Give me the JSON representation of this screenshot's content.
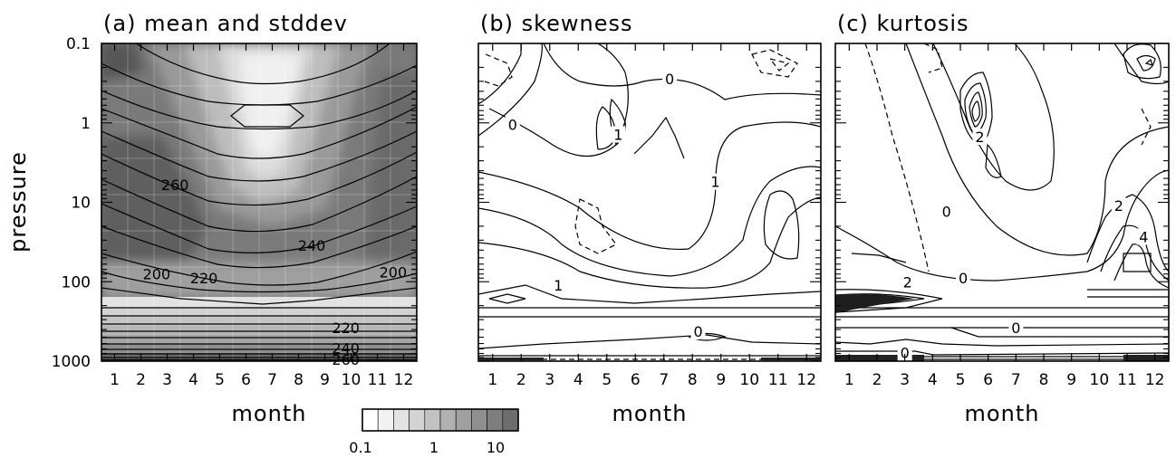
{
  "chart_data": {
    "type": "contour",
    "shared_axes": {
      "xlabel": "month",
      "ylabel": "pressure",
      "x_ticks": [
        "1",
        "2",
        "3",
        "4",
        "5",
        "6",
        "7",
        "8",
        "9",
        "10",
        "11",
        "12"
      ],
      "y_scale": "log",
      "y_reversed": true,
      "y_ticks": [
        "0.1",
        "1",
        "10",
        "100",
        "1000"
      ],
      "xlim": [
        0.5,
        12.5
      ],
      "ylim": [
        1000,
        0.1
      ]
    },
    "panels": [
      {
        "panel": "a",
        "title": "(a)  mean and stddev",
        "shading": "stddev",
        "contour_labels": [
          {
            "text": "260",
            "x": 3.3,
            "p": 6
          },
          {
            "text": "240",
            "x": 8.5,
            "p": 35
          },
          {
            "text": "220",
            "x": 4.4,
            "p": 90
          },
          {
            "text": "200",
            "x": 2.6,
            "p": 80
          },
          {
            "text": "200",
            "x": 11.6,
            "p": 75
          },
          {
            "text": "220",
            "x": 9.8,
            "p": 380
          },
          {
            "text": "240",
            "x": 9.8,
            "p": 680
          },
          {
            "text": "260",
            "x": 9.8,
            "p": 950
          }
        ]
      },
      {
        "panel": "b",
        "title": "(b)        skewness",
        "contour_labels": [
          {
            "text": "0",
            "x": 7.2,
            "p": 0.28
          },
          {
            "text": "0",
            "x": 1.7,
            "p": 1.05
          },
          {
            "text": "1",
            "x": 5.4,
            "p": 1.4
          },
          {
            "text": "1",
            "x": 8.8,
            "p": 5.5
          },
          {
            "text": "1",
            "x": 3.3,
            "p": 110
          },
          {
            "text": "0",
            "x": 8.2,
            "p": 420
          }
        ]
      },
      {
        "panel": "c",
        "title": "(c)         kurtosis",
        "contour_labels": [
          {
            "text": "2",
            "x": 5.7,
            "p": 1.5
          },
          {
            "text": "0",
            "x": 4.5,
            "p": 13
          },
          {
            "text": "0",
            "x": 5.1,
            "p": 90
          },
          {
            "text": "2",
            "x": 3.1,
            "p": 100
          },
          {
            "text": "0",
            "x": 7.0,
            "p": 380
          },
          {
            "text": "0",
            "x": 3.0,
            "p": 780
          },
          {
            "text": "2",
            "x": 10.7,
            "p": 11
          },
          {
            "text": "4",
            "x": 11.6,
            "p": 27
          }
        ]
      }
    ],
    "colorbar": {
      "label_low": "0.1",
      "label_mid": "1",
      "label_high": "10",
      "scale": "log",
      "shades": [
        "#ffffff",
        "#f2f2f2",
        "#e3e3e3",
        "#d3d3d3",
        "#c2c2c2",
        "#b1b1b1",
        "#a0a0a0",
        "#8f8f8f",
        "#7e7e7e",
        "#6d6d6d"
      ]
    }
  }
}
